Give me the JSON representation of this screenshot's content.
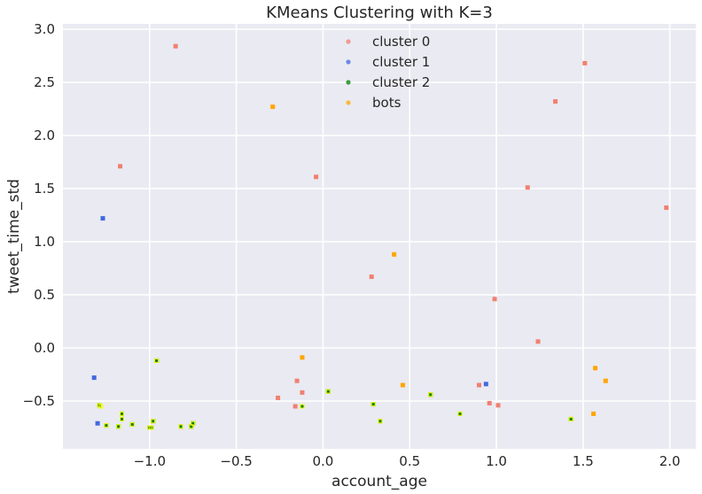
{
  "chart_data": {
    "type": "scatter",
    "title": "KMeans Clustering with K=3",
    "xlabel": "account_age",
    "ylabel": "tweet_time_std",
    "xlim": [
      -1.5,
      2.15
    ],
    "ylim": [
      -0.95,
      3.05
    ],
    "xticks": [
      -1.0,
      -0.5,
      0.0,
      0.5,
      1.0,
      1.5,
      2.0
    ],
    "xtick_labels": [
      "−1.0",
      "−0.5",
      "0.0",
      "0.5",
      "1.0",
      "1.5",
      "2.0"
    ],
    "yticks": [
      -0.5,
      0.0,
      0.5,
      1.0,
      1.5,
      2.0,
      2.5,
      3.0
    ],
    "ytick_labels": [
      "−0.5",
      "0.0",
      "0.5",
      "1.0",
      "1.5",
      "2.0",
      "2.5",
      "3.0"
    ],
    "grid": true,
    "legend_position": "top-center",
    "series": [
      {
        "name": "cluster 0",
        "color": "#f08070",
        "x": [
          -0.85,
          -1.17,
          -0.04,
          1.51,
          1.34,
          1.18,
          1.98,
          0.28,
          0.99,
          1.24,
          -0.26,
          -0.15,
          -0.12,
          -0.16,
          0.9,
          0.96,
          1.01
        ],
        "y": [
          2.84,
          1.71,
          1.61,
          2.68,
          2.32,
          1.51,
          1.32,
          0.67,
          0.46,
          0.06,
          -0.47,
          -0.31,
          -0.42,
          -0.55,
          -0.35,
          -0.52,
          -0.54
        ]
      },
      {
        "name": "cluster 1",
        "color": "#4169e1",
        "x": [
          -1.27,
          -1.32,
          -1.3,
          0.94
        ],
        "y": [
          1.22,
          -0.28,
          -0.71,
          -0.34
        ]
      },
      {
        "name": "cluster 2",
        "color": "#008000",
        "x": [
          -0.96,
          -1.29,
          -1.25,
          -1.16,
          -1.16,
          -1.1,
          -1.18,
          -0.99,
          -1.0,
          -0.98,
          -0.82,
          -0.76,
          -0.75,
          -0.12,
          0.03,
          0.29,
          0.33,
          0.62,
          0.79,
          1.43
        ],
        "y": [
          -0.12,
          -0.54,
          -0.73,
          -0.62,
          -0.67,
          -0.72,
          -0.74,
          -0.75,
          -0.75,
          -0.69,
          -0.74,
          -0.74,
          -0.71,
          -0.55,
          -0.41,
          -0.53,
          -0.69,
          -0.44,
          -0.62,
          -0.67
        ]
      },
      {
        "name": "bots",
        "color": "#ffa500",
        "x": [
          -0.29,
          0.41,
          -0.12,
          0.46,
          1.57,
          1.63,
          1.56
        ],
        "y": [
          2.27,
          0.88,
          -0.09,
          -0.35,
          -0.19,
          -0.31,
          -0.62
        ]
      },
      {
        "name": "",
        "color": "#ffff00",
        "x": [
          -0.96,
          -1.29,
          -1.28,
          -1.25,
          -1.16,
          -1.16,
          -1.1,
          -1.18,
          -0.99,
          -1.0,
          -0.98,
          -0.82,
          -0.76,
          -0.75,
          -0.12,
          0.03,
          0.29,
          0.33,
          0.62,
          0.79,
          1.43
        ],
        "y": [
          -0.12,
          -0.54,
          -0.55,
          -0.73,
          -0.62,
          -0.67,
          -0.72,
          -0.74,
          -0.75,
          -0.75,
          -0.69,
          -0.74,
          -0.74,
          -0.71,
          -0.55,
          -0.41,
          -0.53,
          -0.69,
          -0.44,
          -0.62,
          -0.67
        ]
      }
    ]
  }
}
